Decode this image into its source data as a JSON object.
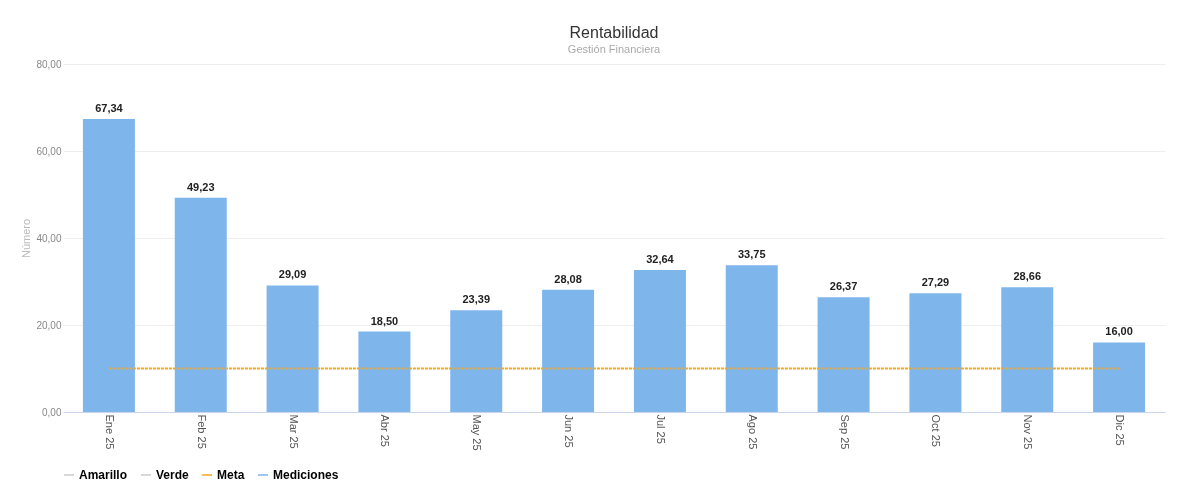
{
  "chart_data": {
    "type": "bar",
    "title": "Rentabilidad",
    "subtitle": "Gestión Financiera",
    "ylabel": "Número",
    "categories": [
      "Ene 25",
      "Feb 25",
      "Mar 25",
      "Abr 25",
      "May 25",
      "Jun 25",
      "Jul 25",
      "Ago 25",
      "Sep 25",
      "Oct 25",
      "Nov 25",
      "Dic 25"
    ],
    "series": [
      {
        "name": "Amarillo",
        "type": "line",
        "color": "#cccccc",
        "values": [
          null,
          null,
          null,
          null,
          null,
          null,
          null,
          null,
          null,
          null,
          null,
          null
        ]
      },
      {
        "name": "Verde",
        "type": "line",
        "color": "#cccccc",
        "values": [
          null,
          null,
          null,
          null,
          null,
          null,
          null,
          null,
          null,
          null,
          null,
          null
        ]
      },
      {
        "name": "Meta",
        "type": "line",
        "color": "#f5a623",
        "line_style": "dotted",
        "values": [
          10,
          10,
          10,
          10,
          10,
          10,
          10,
          10,
          10,
          10,
          10,
          10
        ]
      },
      {
        "name": "Mediciones",
        "color": "#7eb6ec",
        "values": [
          67.34,
          49.23,
          29.09,
          18.5,
          23.39,
          28.08,
          32.64,
          33.75,
          26.37,
          27.29,
          28.66,
          16.0
        ],
        "value_labels": [
          "67,34",
          "49,23",
          "29,09",
          "18,50",
          "23,39",
          "28,08",
          "32,64",
          "33,75",
          "26,37",
          "27,29",
          "28,66",
          "16,00"
        ]
      }
    ],
    "ylim": [
      0,
      80
    ],
    "yticks": [
      {
        "value": 0,
        "label": "0,00"
      },
      {
        "value": 20,
        "label": "20,00"
      },
      {
        "value": 40,
        "label": "40,00"
      },
      {
        "value": 60,
        "label": "60,00"
      },
      {
        "value": 80,
        "label": "80,00"
      }
    ],
    "grid": "y",
    "legend": "bottom"
  }
}
